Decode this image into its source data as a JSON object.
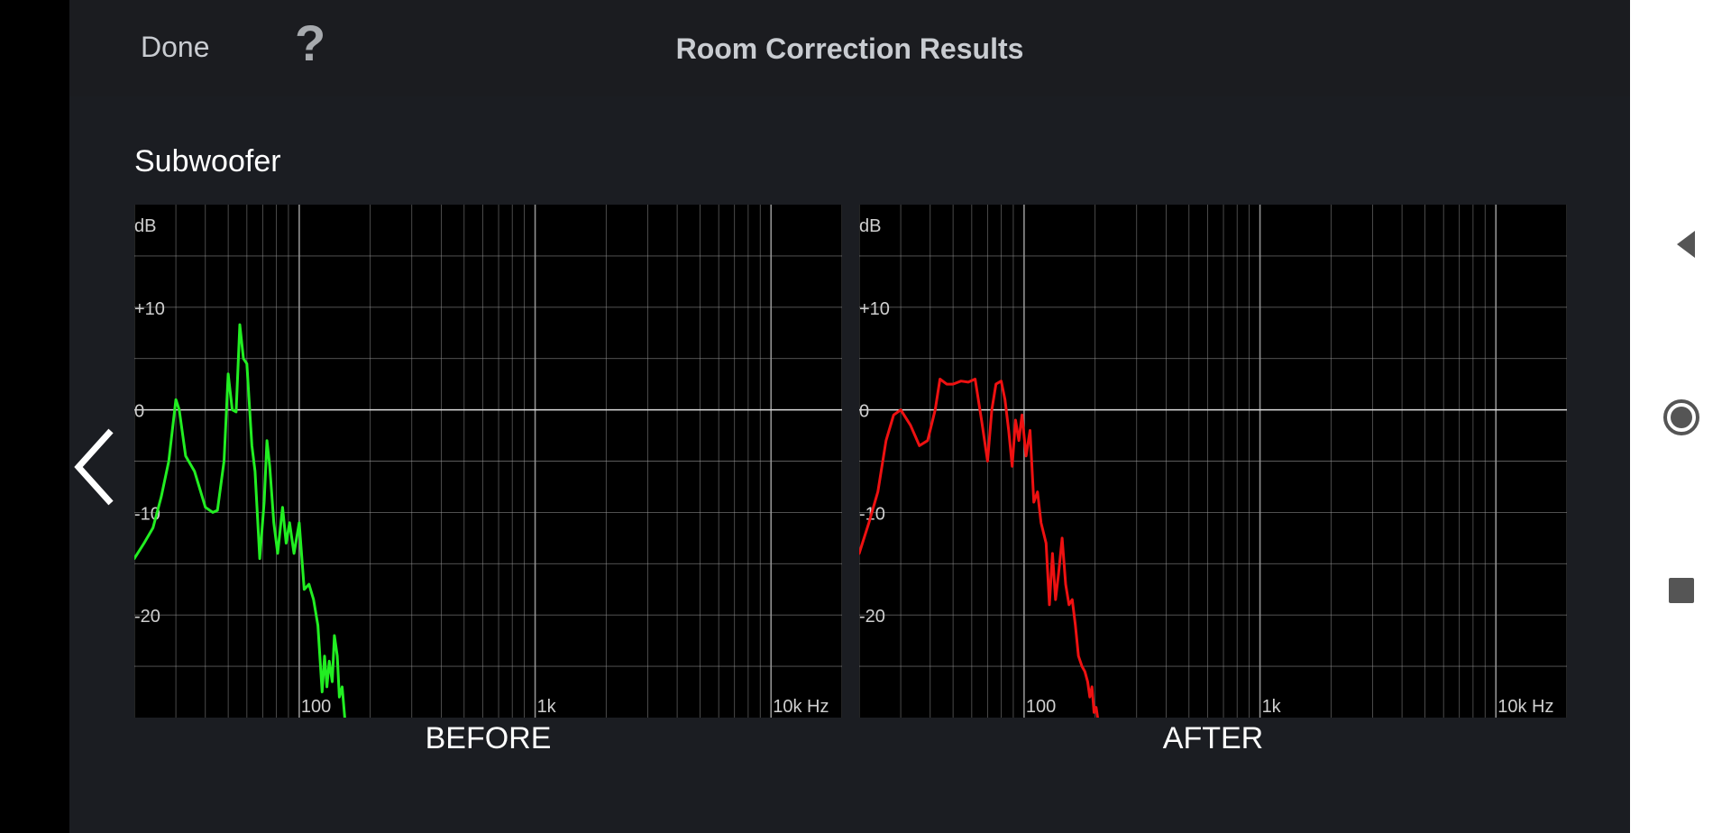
{
  "header": {
    "done_label": "Done",
    "help_label": "?",
    "title": "Room Correction Results"
  },
  "section": {
    "label": "Subwoofer"
  },
  "icons": {
    "prev": "chevron-left-icon",
    "nav_back": "triangle-back-icon",
    "nav_home": "circle-home-icon",
    "nav_recents": "square-recents-icon"
  },
  "colors": {
    "before_line": "#22ee22",
    "after_line": "#ee1111",
    "grid": "#9a9a9a",
    "background": "#1b1d22"
  },
  "chart_data": [
    {
      "type": "line",
      "caption": "BEFORE",
      "ylabel": "dB",
      "xlabel": "Hz",
      "x_scale": "log",
      "xlim": [
        20,
        20000
      ],
      "ylim": [
        -30,
        20
      ],
      "y_ticks": [
        {
          "value": 10,
          "label": "+10"
        },
        {
          "value": 0,
          "label": "0"
        },
        {
          "value": -10,
          "label": "-10"
        },
        {
          "value": -20,
          "label": "-20"
        }
      ],
      "x_ticks": [
        {
          "value": 100,
          "label": "100"
        },
        {
          "value": 1000,
          "label": "1k"
        },
        {
          "value": 10000,
          "label": "10k Hz"
        }
      ],
      "grid": true,
      "series": [
        {
          "color": "#22ee22",
          "points": [
            [
              20,
              -14.5
            ],
            [
              22,
              -13
            ],
            [
              24,
              -11.5
            ],
            [
              26,
              -8.5
            ],
            [
              28,
              -5
            ],
            [
              30,
              1
            ],
            [
              31,
              0
            ],
            [
              33,
              -4.5
            ],
            [
              36,
              -6
            ],
            [
              40,
              -9.5
            ],
            [
              43,
              -10
            ],
            [
              45,
              -9.8
            ],
            [
              48,
              -5
            ],
            [
              50,
              3.5
            ],
            [
              52,
              0
            ],
            [
              54,
              -0.2
            ],
            [
              56,
              8.3
            ],
            [
              58,
              5
            ],
            [
              60,
              4.5
            ],
            [
              63,
              -3.5
            ],
            [
              65,
              -6
            ],
            [
              68,
              -14.5
            ],
            [
              71,
              -9
            ],
            [
              73,
              -3
            ],
            [
              75,
              -5.5
            ],
            [
              78,
              -11
            ],
            [
              81,
              -14
            ],
            [
              85,
              -9.5
            ],
            [
              88,
              -13
            ],
            [
              91,
              -11
            ],
            [
              95,
              -14
            ],
            [
              100,
              -11
            ],
            [
              105,
              -17.5
            ],
            [
              110,
              -17
            ],
            [
              115,
              -18.5
            ],
            [
              120,
              -21
            ],
            [
              125,
              -27.5
            ],
            [
              128,
              -24
            ],
            [
              131,
              -27
            ],
            [
              134,
              -24.5
            ],
            [
              138,
              -26.5
            ],
            [
              141,
              -22
            ],
            [
              145,
              -24
            ],
            [
              148,
              -28
            ],
            [
              152,
              -27
            ],
            [
              156,
              -30
            ]
          ]
        }
      ]
    },
    {
      "type": "line",
      "caption": "AFTER",
      "ylabel": "dB",
      "xlabel": "Hz",
      "x_scale": "log",
      "xlim": [
        20,
        20000
      ],
      "ylim": [
        -30,
        20
      ],
      "y_ticks": [
        {
          "value": 10,
          "label": "+10"
        },
        {
          "value": 0,
          "label": "0"
        },
        {
          "value": -10,
          "label": "-10"
        },
        {
          "value": -20,
          "label": "-20"
        }
      ],
      "x_ticks": [
        {
          "value": 100,
          "label": "100"
        },
        {
          "value": 1000,
          "label": "1k"
        },
        {
          "value": 10000,
          "label": "10k Hz"
        }
      ],
      "grid": true,
      "series": [
        {
          "color": "#ee1111",
          "points": [
            [
              20,
              -14
            ],
            [
              22,
              -11
            ],
            [
              24,
              -8
            ],
            [
              26,
              -3
            ],
            [
              28,
              -0.5
            ],
            [
              30,
              0
            ],
            [
              33,
              -1.5
            ],
            [
              36,
              -3.5
            ],
            [
              39,
              -3
            ],
            [
              42,
              0
            ],
            [
              44,
              3
            ],
            [
              47,
              2.5
            ],
            [
              50,
              2.5
            ],
            [
              54,
              2.8
            ],
            [
              58,
              2.7
            ],
            [
              62,
              3
            ],
            [
              66,
              -1
            ],
            [
              70,
              -5
            ],
            [
              73,
              0
            ],
            [
              76,
              2.5
            ],
            [
              80,
              2.8
            ],
            [
              83,
              1
            ],
            [
              86,
              -2
            ],
            [
              89,
              -5.5
            ],
            [
              92,
              -1
            ],
            [
              95,
              -3
            ],
            [
              98,
              -0.5
            ],
            [
              102,
              -4.5
            ],
            [
              106,
              -2
            ],
            [
              110,
              -9
            ],
            [
              114,
              -8
            ],
            [
              118,
              -11
            ],
            [
              124,
              -13
            ],
            [
              128,
              -19
            ],
            [
              132,
              -14
            ],
            [
              136,
              -18.5
            ],
            [
              140,
              -16
            ],
            [
              145,
              -12.5
            ],
            [
              150,
              -17
            ],
            [
              155,
              -19
            ],
            [
              160,
              -18.5
            ],
            [
              165,
              -21
            ],
            [
              170,
              -24
            ],
            [
              176,
              -25
            ],
            [
              181,
              -25.5
            ],
            [
              186,
              -26.5
            ],
            [
              190,
              -28
            ],
            [
              194,
              -27
            ],
            [
              198,
              -29.5
            ],
            [
              202,
              -29
            ],
            [
              205,
              -30
            ]
          ]
        }
      ]
    }
  ]
}
